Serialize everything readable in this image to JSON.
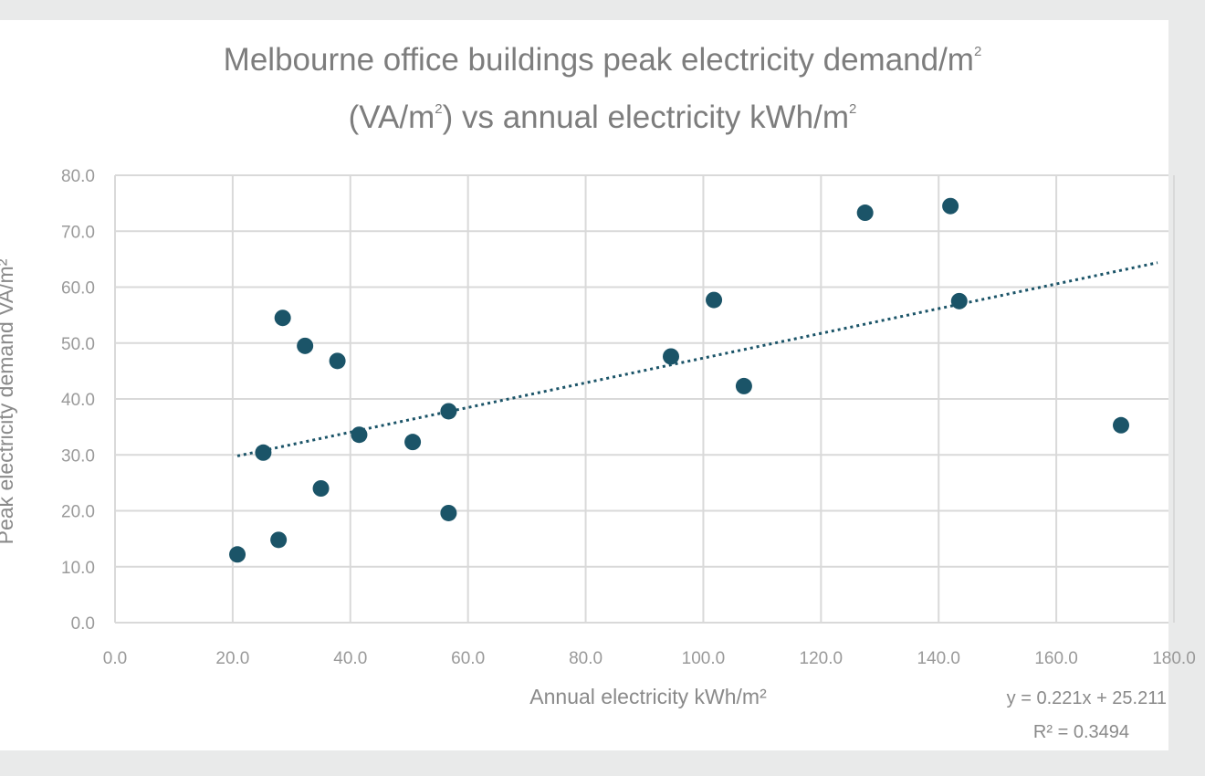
{
  "chart_data": {
    "type": "scatter",
    "title_line1": "Melbourne office buildings peak electricity demand/m",
    "title_line1_sup": "2",
    "title_line2_a": "(VA/m",
    "title_line2_sup": "2",
    "title_line2_b": ") vs annual electricity kWh/m",
    "title_line2_sup2": "2",
    "xlabel": "Annual electricity kWh/m²",
    "ylabel": "Peak electricity demand VA/m²",
    "xlim": [
      0,
      180
    ],
    "ylim": [
      0,
      80
    ],
    "x_ticks": [
      "0.0",
      "20.0",
      "40.0",
      "60.0",
      "80.0",
      "100.0",
      "120.0",
      "140.0",
      "160.0",
      "180.0"
    ],
    "y_ticks": [
      "0.0",
      "10.0",
      "20.0",
      "30.0",
      "40.0",
      "50.0",
      "60.0",
      "70.0",
      "80.0"
    ],
    "grid": true,
    "series": [
      {
        "color": "#1b5468",
        "points": [
          {
            "x": 20.8,
            "y": 12.2
          },
          {
            "x": 25.2,
            "y": 30.4
          },
          {
            "x": 27.8,
            "y": 14.8
          },
          {
            "x": 28.5,
            "y": 54.5
          },
          {
            "x": 32.3,
            "y": 49.5
          },
          {
            "x": 35.0,
            "y": 24.0
          },
          {
            "x": 37.8,
            "y": 46.8
          },
          {
            "x": 41.5,
            "y": 33.6
          },
          {
            "x": 50.6,
            "y": 32.3
          },
          {
            "x": 56.7,
            "y": 37.8
          },
          {
            "x": 56.7,
            "y": 19.6
          },
          {
            "x": 94.5,
            "y": 47.6
          },
          {
            "x": 101.8,
            "y": 57.7
          },
          {
            "x": 106.9,
            "y": 42.3
          },
          {
            "x": 127.5,
            "y": 73.3
          },
          {
            "x": 142.0,
            "y": 74.5
          },
          {
            "x": 143.5,
            "y": 57.5
          },
          {
            "x": 171.0,
            "y": 35.3
          }
        ]
      }
    ],
    "trendline": {
      "type": "linear",
      "slope": 0.221,
      "intercept": 25.211,
      "x_range": [
        20.8,
        171.0
      ],
      "equation_label": "y = 0.221x + 25.211",
      "r2_label": "R² = 0.3494",
      "color": "#1b5468"
    }
  }
}
